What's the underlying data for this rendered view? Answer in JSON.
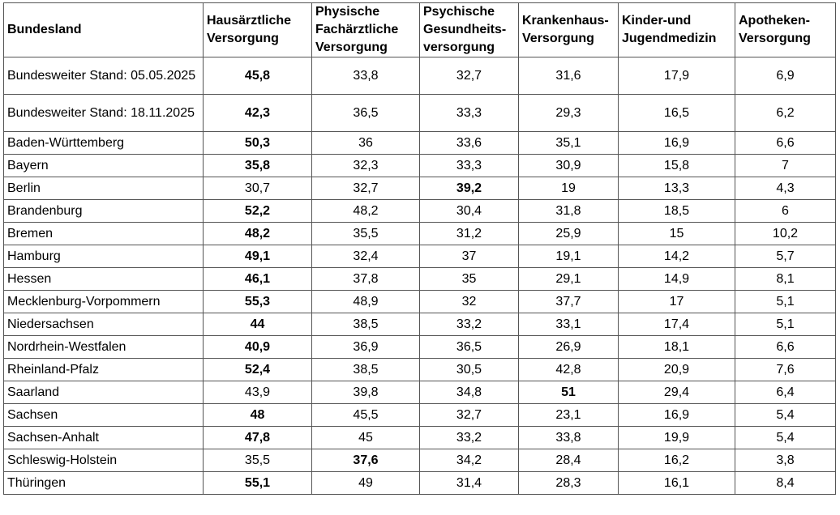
{
  "headers": [
    "Bundesland",
    "Hausärztliche Versorgung",
    "Physische Fachärztliche Versorgung",
    "Psychische Gesundheits-versorgung",
    "Krankenhaus-Versorgung",
    "Kinder-und Jugendmedizin",
    "Apotheken-Versorgung"
  ],
  "rows": [
    {
      "name": "Bundesweiter Stand: 05.05.2025",
      "values": [
        "45,8",
        "33,8",
        "32,7",
        "31,6",
        "17,9",
        "6,9"
      ],
      "bold": [
        true,
        false,
        false,
        false,
        false,
        false
      ]
    },
    {
      "name": "Bundesweiter Stand: 18.11.2025",
      "values": [
        "42,3",
        "36,5",
        "33,3",
        "29,3",
        "16,5",
        "6,2"
      ],
      "bold": [
        true,
        false,
        false,
        false,
        false,
        false
      ]
    },
    {
      "name": "Baden-Württemberg",
      "values": [
        "50,3",
        "36",
        "33,6",
        "35,1",
        "16,9",
        "6,6"
      ],
      "bold": [
        true,
        false,
        false,
        false,
        false,
        false
      ]
    },
    {
      "name": "Bayern",
      "values": [
        "35,8",
        "32,3",
        "33,3",
        "30,9",
        "15,8",
        "7"
      ],
      "bold": [
        true,
        false,
        false,
        false,
        false,
        false
      ]
    },
    {
      "name": "Berlin",
      "values": [
        "30,7",
        "32,7",
        "39,2",
        "19",
        "13,3",
        "4,3"
      ],
      "bold": [
        false,
        false,
        true,
        false,
        false,
        false
      ]
    },
    {
      "name": "Brandenburg",
      "values": [
        "52,2",
        "48,2",
        "30,4",
        "31,8",
        "18,5",
        "6"
      ],
      "bold": [
        true,
        false,
        false,
        false,
        false,
        false
      ]
    },
    {
      "name": "Bremen",
      "values": [
        "48,2",
        "35,5",
        "31,2",
        "25,9",
        "15",
        "10,2"
      ],
      "bold": [
        true,
        false,
        false,
        false,
        false,
        false
      ]
    },
    {
      "name": "Hamburg",
      "values": [
        "49,1",
        "32,4",
        "37",
        "19,1",
        "14,2",
        "5,7"
      ],
      "bold": [
        true,
        false,
        false,
        false,
        false,
        false
      ]
    },
    {
      "name": "Hessen",
      "values": [
        "46,1",
        "37,8",
        "35",
        "29,1",
        "14,9",
        "8,1"
      ],
      "bold": [
        true,
        false,
        false,
        false,
        false,
        false
      ]
    },
    {
      "name": "Mecklenburg-Vorpommern",
      "values": [
        "55,3",
        "48,9",
        "32",
        "37,7",
        "17",
        "5,1"
      ],
      "bold": [
        true,
        false,
        false,
        false,
        false,
        false
      ]
    },
    {
      "name": "Niedersachsen",
      "values": [
        "44",
        "38,5",
        "33,2",
        "33,1",
        "17,4",
        "5,1"
      ],
      "bold": [
        true,
        false,
        false,
        false,
        false,
        false
      ]
    },
    {
      "name": "Nordrhein-Westfalen",
      "values": [
        "40,9",
        "36,9",
        "36,5",
        "26,9",
        "18,1",
        "6,6"
      ],
      "bold": [
        true,
        false,
        false,
        false,
        false,
        false
      ]
    },
    {
      "name": "Rheinland-Pfalz",
      "values": [
        "52,4",
        "38,5",
        "30,5",
        "42,8",
        "20,9",
        "7,6"
      ],
      "bold": [
        true,
        false,
        false,
        false,
        false,
        false
      ]
    },
    {
      "name": "Saarland",
      "values": [
        "43,9",
        "39,8",
        "34,8",
        "51",
        "29,4",
        "6,4"
      ],
      "bold": [
        false,
        false,
        false,
        true,
        false,
        false
      ]
    },
    {
      "name": "Sachsen",
      "values": [
        "48",
        "45,5",
        "32,7",
        "23,1",
        "16,9",
        "5,4"
      ],
      "bold": [
        true,
        false,
        false,
        false,
        false,
        false
      ]
    },
    {
      "name": "Sachsen-Anhalt",
      "values": [
        "47,8",
        "45",
        "33,2",
        "33,8",
        "19,9",
        "5,4"
      ],
      "bold": [
        true,
        false,
        false,
        false,
        false,
        false
      ]
    },
    {
      "name": "Schleswig-Holstein",
      "values": [
        "35,5",
        "37,6",
        "34,2",
        "28,4",
        "16,2",
        "3,8"
      ],
      "bold": [
        false,
        true,
        false,
        false,
        false,
        false
      ]
    },
    {
      "name": "Thüringen",
      "values": [
        "55,1",
        "49",
        "31,4",
        "28,3",
        "16,1",
        "8,4"
      ],
      "bold": [
        true,
        false,
        false,
        false,
        false,
        false
      ]
    }
  ]
}
